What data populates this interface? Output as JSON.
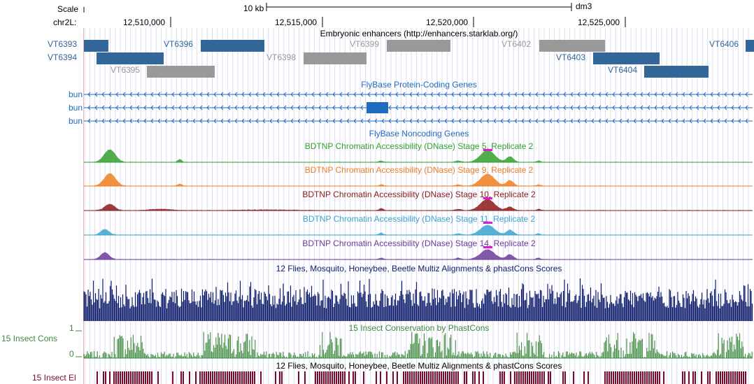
{
  "ruler": {
    "scale_label": "Scale",
    "chrom_label": "chr2L:",
    "scale_bar_text": "10 kb",
    "assembly": "dm3",
    "positions": [
      "12,510,000",
      "12,515,000",
      "12,520,000",
      "12,525,000"
    ]
  },
  "enhancers": {
    "title": "Embryonic enhancers (http://enhancers.starklab.org/)",
    "colors": {
      "active": "#336699",
      "inactive": "#999999"
    },
    "items": [
      {
        "name": "VT6393",
        "active": true
      },
      {
        "name": "VT6394",
        "active": true
      },
      {
        "name": "VT6395",
        "active": false
      },
      {
        "name": "VT6396",
        "active": true
      },
      {
        "name": "VT6398",
        "active": false
      },
      {
        "name": "VT6399",
        "active": false
      },
      {
        "name": "VT6402",
        "active": false
      },
      {
        "name": "VT6403",
        "active": true
      },
      {
        "name": "VT6404",
        "active": true
      },
      {
        "name": "VT6406",
        "active": true
      }
    ]
  },
  "genes": {
    "title": "FlyBase Protein-Coding Genes",
    "color": "#1f6bbf",
    "strand": "minus",
    "transcripts": [
      "bun",
      "bun",
      "bun"
    ]
  },
  "noncoding": {
    "title": "FlyBase Noncoding Genes"
  },
  "dnase": [
    {
      "title": "BDTNP Chromatin Accessibility (DNase) Stage 5, Replicate 2",
      "color": "#33a02c"
    },
    {
      "title": "BDTNP Chromatin Accessibility (DNase) Stage 9, Replicate 2",
      "color": "#f07f20"
    },
    {
      "title": "BDTNP Chromatin Accessibility (DNase) Stage 10, Replicate 2",
      "color": "#8b1a1a"
    },
    {
      "title": "BDTNP Chromatin Accessibility (DNase) Stage 11, Replicate 2",
      "color": "#3ba4cf"
    },
    {
      "title": "BDTNP Chromatin Accessibility (DNase) Stage 14, Replicate 2",
      "color": "#6a3d9a"
    }
  ],
  "multiz": {
    "title": "12 Flies, Mosquito, Honeybee, Beetle Multiz Alignments & phastCons Scores",
    "color": "#0d1b6b"
  },
  "phastcons": {
    "title": "15 Insect Conservation by PhastCons",
    "left_label": "15 Insect Cons",
    "scale_max": "1",
    "scale_min": "0",
    "color": "#3d8a3d"
  },
  "elements": {
    "title": "12 Flies, Mosquito, Honeybee, Beetle Multiz Alignments & phastCons Scores",
    "left_label": "15 Insect El",
    "color": "#7a0a2a"
  }
}
